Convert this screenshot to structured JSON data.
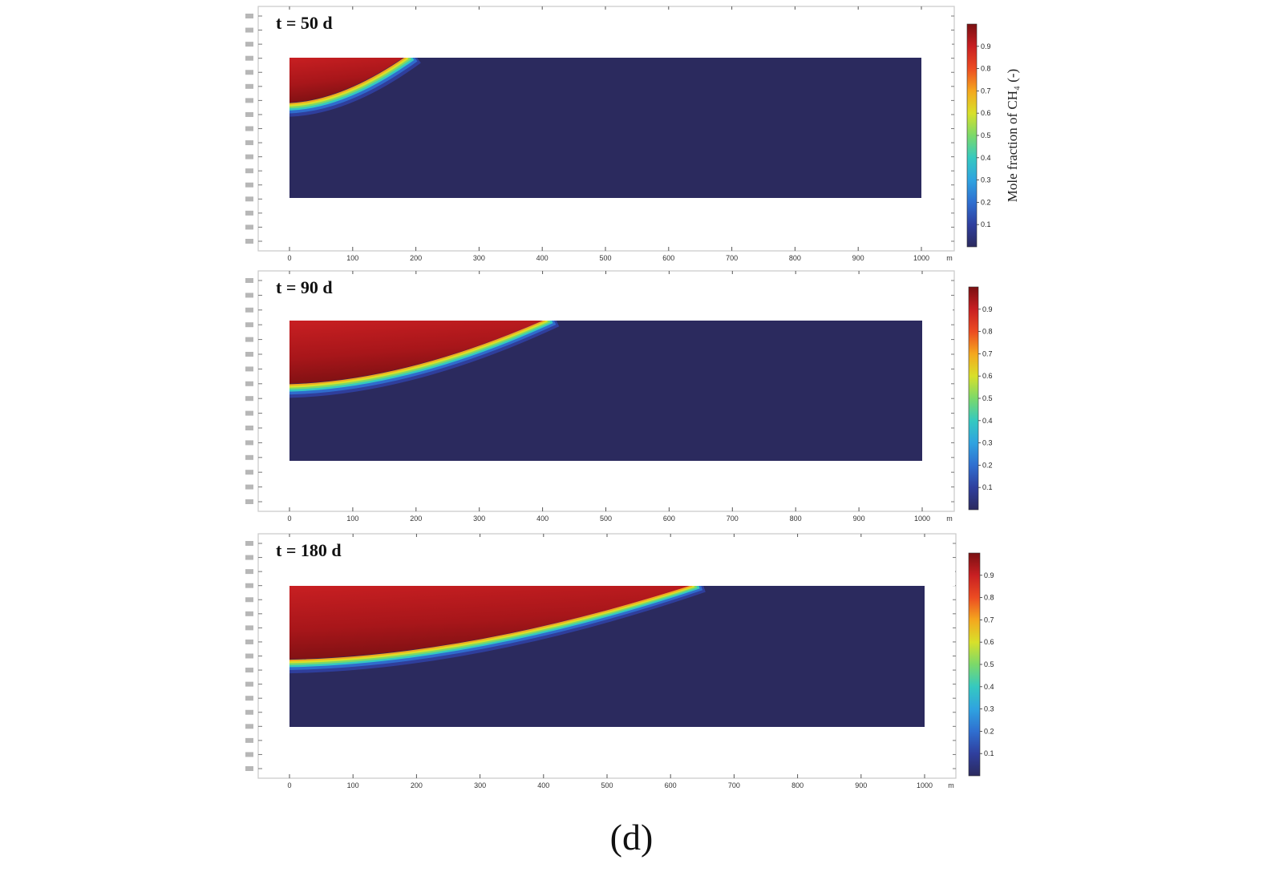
{
  "figure_label": "(d)",
  "colormap": [
    "#2b2a5e",
    "#2f3f9e",
    "#2f6fd0",
    "#2fa3e0",
    "#35c9c0",
    "#7bd96a",
    "#d8e02a",
    "#f4a71e",
    "#ec4c22",
    "#c81f22",
    "#7a1012"
  ],
  "chart_data": [
    {
      "type": "heatmap",
      "title": "t = 50 d",
      "x_ticks": [
        "0",
        "100",
        "200",
        "300",
        "400",
        "500",
        "600",
        "700",
        "800",
        "900",
        "1000"
      ],
      "x_unit": "m",
      "xlim": [
        0,
        1000
      ],
      "front_x_surface": 180,
      "front_depth_at_origin_fraction": 0.32,
      "colorbar_ticks": [
        "0.9",
        "0.8",
        "0.7",
        "0.6",
        "0.5",
        "0.4",
        "0.3",
        "0.2",
        "0.1"
      ],
      "colorbar_label": "Mole fraction of CH₄ (-)"
    },
    {
      "type": "heatmap",
      "title": "t = 90 d",
      "x_ticks": [
        "0",
        "100",
        "200",
        "300",
        "400",
        "500",
        "600",
        "700",
        "800",
        "900",
        "1000"
      ],
      "x_unit": "m",
      "xlim": [
        0,
        1000
      ],
      "front_x_surface": 400,
      "front_depth_at_origin_fraction": 0.45,
      "colorbar_ticks": [
        "0.9",
        "0.8",
        "0.7",
        "0.6",
        "0.5",
        "0.4",
        "0.3",
        "0.2",
        "0.1"
      ],
      "colorbar_label": ""
    },
    {
      "type": "heatmap",
      "title": "t = 180 d",
      "x_ticks": [
        "0",
        "100",
        "200",
        "300",
        "400",
        "500",
        "600",
        "700",
        "800",
        "900",
        "1000"
      ],
      "x_unit": "m",
      "xlim": [
        0,
        1000
      ],
      "front_x_surface": 630,
      "front_depth_at_origin_fraction": 0.52,
      "colorbar_ticks": [
        "0.9",
        "0.8",
        "0.7",
        "0.6",
        "0.5",
        "0.4",
        "0.3",
        "0.2",
        "0.1"
      ],
      "colorbar_label": ""
    }
  ]
}
